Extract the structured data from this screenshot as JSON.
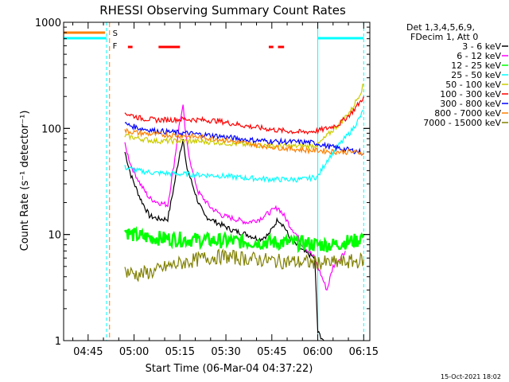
{
  "chart_data": {
    "type": "line",
    "title": "RHESSI Observing Summary Count Rates",
    "xlabel": "Start Time (06-Mar-04 04:37:22)",
    "ylabel": "Count Rate (s⁻¹ detector⁻¹)",
    "y_scale": "log",
    "ylim": [
      1,
      1000
    ],
    "xlim_minutes_after_0437": [
      0,
      100
    ],
    "y_tick_labels": [
      "1",
      "10",
      "100",
      "1000"
    ],
    "x_tick_labels": [
      {
        "label": "04:45",
        "minute": 8
      },
      {
        "label": "05:00",
        "minute": 23
      },
      {
        "label": "05:15",
        "minute": 38
      },
      {
        "label": "05:30",
        "minute": 53
      },
      {
        "label": "05:45",
        "minute": 68
      },
      {
        "label": "06:00",
        "minute": 83
      },
      {
        "label": "06:15",
        "minute": 98
      }
    ],
    "legend_header": [
      "Det 1,3,4,5,6,9,",
      "FDecim 1, Att 0"
    ],
    "legend_position": "right",
    "series": [
      {
        "name": "3 - 6 keV",
        "color": "#000000",
        "points": [
          [
            20,
            60
          ],
          [
            22,
            36
          ],
          [
            25,
            22
          ],
          [
            28,
            15
          ],
          [
            31,
            14
          ],
          [
            34,
            14
          ],
          [
            36,
            28
          ],
          [
            38,
            60
          ],
          [
            39,
            80
          ],
          [
            40,
            45
          ],
          [
            42,
            30
          ],
          [
            44,
            20
          ],
          [
            46,
            15
          ],
          [
            50,
            13
          ],
          [
            55,
            11
          ],
          [
            60,
            10
          ],
          [
            64,
            9
          ],
          [
            67,
            10
          ],
          [
            70,
            14
          ],
          [
            72,
            12
          ],
          [
            74,
            9
          ],
          [
            76,
            8
          ],
          [
            78,
            7
          ],
          [
            80,
            6.5
          ],
          [
            82,
            6
          ],
          [
            83,
            1.2
          ],
          [
            85,
            1.0
          ]
        ]
      },
      {
        "name": "6 - 12 keV",
        "color": "#ff00ff",
        "points": [
          [
            20,
            70
          ],
          [
            22,
            45
          ],
          [
            25,
            30
          ],
          [
            28,
            22
          ],
          [
            31,
            20
          ],
          [
            34,
            19
          ],
          [
            36,
            45
          ],
          [
            38,
            120
          ],
          [
            39,
            160
          ],
          [
            40,
            80
          ],
          [
            42,
            40
          ],
          [
            44,
            25
          ],
          [
            48,
            18
          ],
          [
            52,
            15
          ],
          [
            56,
            14
          ],
          [
            60,
            13
          ],
          [
            64,
            14
          ],
          [
            67,
            16
          ],
          [
            70,
            18
          ],
          [
            72,
            15
          ],
          [
            74,
            12
          ],
          [
            76,
            10
          ],
          [
            78,
            8
          ],
          [
            80,
            7
          ],
          [
            82,
            6
          ],
          [
            83,
            5
          ],
          [
            86,
            3
          ],
          [
            88,
            5
          ],
          [
            92,
            7
          ]
        ]
      },
      {
        "name": "12 - 25 keV",
        "color": "#00ff00",
        "points": [
          [
            20,
            11
          ],
          [
            22,
            10
          ],
          [
            26,
            9.5
          ],
          [
            32,
            9.2
          ],
          [
            40,
            9
          ],
          [
            48,
            8.8
          ],
          [
            56,
            8.6
          ],
          [
            64,
            8.5
          ],
          [
            72,
            8.4
          ],
          [
            80,
            8.2
          ],
          [
            83,
            8
          ],
          [
            88,
            8
          ],
          [
            92,
            8.5
          ],
          [
            96,
            8.8
          ],
          [
            98,
            10
          ]
        ]
      },
      {
        "name": "25 - 50 keV",
        "color": "#00ffff",
        "points": [
          [
            20,
            43
          ],
          [
            24,
            40
          ],
          [
            30,
            38
          ],
          [
            40,
            37
          ],
          [
            50,
            36
          ],
          [
            60,
            34
          ],
          [
            70,
            33
          ],
          [
            78,
            33
          ],
          [
            83,
            35
          ],
          [
            86,
            50
          ],
          [
            90,
            70
          ],
          [
            94,
            95
          ],
          [
            97,
            130
          ],
          [
            98,
            150
          ]
        ]
      },
      {
        "name": "50 - 100 keV",
        "color": "#cccc00",
        "points": [
          [
            20,
            85
          ],
          [
            25,
            80
          ],
          [
            30,
            76
          ],
          [
            40,
            76
          ],
          [
            50,
            74
          ],
          [
            60,
            70
          ],
          [
            70,
            68
          ],
          [
            80,
            68
          ],
          [
            83,
            70
          ],
          [
            86,
            85
          ],
          [
            90,
            110
          ],
          [
            94,
            150
          ],
          [
            97,
            220
          ],
          [
            98,
            260
          ]
        ]
      },
      {
        "name": "100 - 300 keV",
        "color": "#ff0000",
        "points": [
          [
            20,
            140
          ],
          [
            25,
            125
          ],
          [
            30,
            120
          ],
          [
            40,
            122
          ],
          [
            50,
            118
          ],
          [
            60,
            105
          ],
          [
            70,
            96
          ],
          [
            78,
            92
          ],
          [
            83,
            95
          ],
          [
            86,
            100
          ],
          [
            90,
            110
          ],
          [
            94,
            140
          ],
          [
            97,
            180
          ],
          [
            98,
            200
          ]
        ]
      },
      {
        "name": "300 - 800 keV",
        "color": "#0000ff",
        "points": [
          [
            20,
            110
          ],
          [
            25,
            100
          ],
          [
            30,
            95
          ],
          [
            40,
            90
          ],
          [
            50,
            85
          ],
          [
            60,
            78
          ],
          [
            70,
            75
          ],
          [
            80,
            74
          ],
          [
            83,
            72
          ],
          [
            86,
            68
          ],
          [
            90,
            65
          ],
          [
            94,
            62
          ],
          [
            97,
            60
          ],
          [
            98,
            58
          ]
        ]
      },
      {
        "name": "800 - 7000 keV",
        "color": "#ff8000",
        "points": [
          [
            20,
            95
          ],
          [
            25,
            90
          ],
          [
            30,
            88
          ],
          [
            40,
            85
          ],
          [
            50,
            80
          ],
          [
            60,
            72
          ],
          [
            70,
            66
          ],
          [
            80,
            62
          ],
          [
            83,
            62
          ],
          [
            86,
            61
          ],
          [
            90,
            60
          ],
          [
            94,
            60
          ],
          [
            97,
            59
          ],
          [
            98,
            59
          ]
        ]
      },
      {
        "name": "7000 - 15000 keV",
        "color": "#808000",
        "points": [
          [
            20,
            4.5
          ],
          [
            24,
            4.2
          ],
          [
            30,
            4.5
          ],
          [
            34,
            5
          ],
          [
            40,
            5.5
          ],
          [
            46,
            6
          ],
          [
            52,
            6.2
          ],
          [
            58,
            6
          ],
          [
            64,
            5.8
          ],
          [
            70,
            5.6
          ],
          [
            76,
            5.5
          ],
          [
            83,
            5.4
          ],
          [
            88,
            5.4
          ],
          [
            92,
            5.5
          ],
          [
            96,
            5.6
          ],
          [
            98,
            5.8
          ]
        ]
      }
    ],
    "markers": [
      {
        "label": "S",
        "color": "#ff8000"
      },
      {
        "label": "F",
        "color": "#ff0000"
      }
    ],
    "saa_segments_minutes": [
      [
        0,
        14
      ],
      [
        83,
        98
      ]
    ],
    "flare_segments_minutes": [
      [
        21,
        22.5
      ],
      [
        31,
        38
      ],
      [
        67,
        68.5
      ],
      [
        70,
        72
      ]
    ],
    "footer": "15-Oct-2021 18:02"
  }
}
